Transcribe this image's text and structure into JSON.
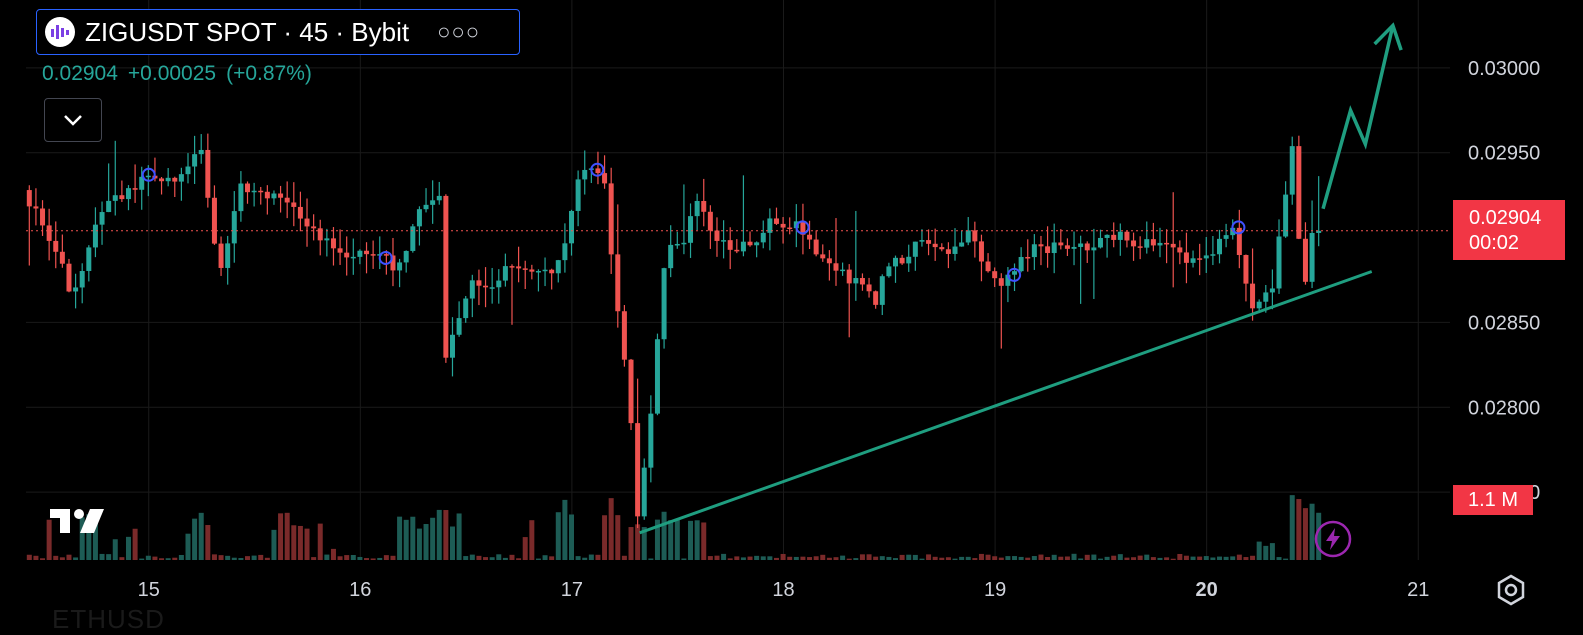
{
  "header": {
    "title": "ZIGUSDT SPOT · 45 · Bybit",
    "more_label": "○○○",
    "last_price": "0.02904",
    "change": "+0.00025",
    "change_pct": "(+0.87%)"
  },
  "price_tag": {
    "price": "0.02904",
    "countdown": "00:02"
  },
  "volume_tag": "1.1 M",
  "footer_text": "ETHUSD",
  "colors": {
    "up": "#26a69a",
    "down": "#ef5350",
    "trendline": "#1f9e80",
    "accent_tag": "#f23645",
    "border": "#2962ff"
  },
  "icons": [
    "tradingview-logo",
    "chevron-down-icon",
    "lightning-icon",
    "settings-gear-icon"
  ],
  "chart_data": {
    "type": "candlestick",
    "y_ticks": [
      "0.03000",
      "0.02950",
      "0.02850",
      "0.02800",
      "0.02750"
    ],
    "x_ticks": [
      {
        "label": "15",
        "bold": false
      },
      {
        "label": "16",
        "bold": false
      },
      {
        "label": "17",
        "bold": false
      },
      {
        "label": "18",
        "bold": false
      },
      {
        "label": "19",
        "bold": false
      },
      {
        "label": "20",
        "bold": true
      },
      {
        "label": "21",
        "bold": false
      }
    ],
    "ylim": [
      0.0271,
      0.0304
    ],
    "xlim": [
      14.42,
      21.15
    ],
    "last_price": 0.02904,
    "trendline": {
      "from": [
        17.32,
        0.02726
      ],
      "to": [
        20.78,
        0.0288
      ]
    },
    "projection": [
      [
        20.55,
        0.02917
      ],
      [
        20.68,
        0.02975
      ],
      [
        20.75,
        0.02955
      ],
      [
        20.88,
        0.03025
      ]
    ],
    "marker_points": [
      [
        15.0,
        0.02937
      ],
      [
        16.12,
        0.02888
      ],
      [
        17.12,
        0.0294
      ],
      [
        18.09,
        0.02906
      ],
      [
        19.09,
        0.02878
      ],
      [
        20.15,
        0.02906
      ]
    ],
    "anchors": [
      [
        14.42,
        0.02928
      ],
      [
        14.52,
        0.0291
      ],
      [
        14.65,
        0.02868
      ],
      [
        14.8,
        0.02915
      ],
      [
        15.0,
        0.02937
      ],
      [
        15.15,
        0.02935
      ],
      [
        15.25,
        0.02955
      ],
      [
        15.28,
        0.0294
      ],
      [
        15.35,
        0.0288
      ],
      [
        15.45,
        0.02928
      ],
      [
        15.6,
        0.02925
      ],
      [
        15.75,
        0.0291
      ],
      [
        15.9,
        0.0289
      ],
      [
        16.12,
        0.02888
      ],
      [
        16.2,
        0.02882
      ],
      [
        16.3,
        0.0292
      ],
      [
        16.4,
        0.02926
      ],
      [
        16.42,
        0.0283
      ],
      [
        16.55,
        0.0288
      ],
      [
        16.6,
        0.0287
      ],
      [
        16.7,
        0.0288
      ],
      [
        16.95,
        0.02883
      ],
      [
        17.0,
        0.02905
      ],
      [
        17.05,
        0.02935
      ],
      [
        17.12,
        0.0294
      ],
      [
        17.18,
        0.0293
      ],
      [
        17.2,
        0.0289
      ],
      [
        17.28,
        0.02815
      ],
      [
        17.33,
        0.0273
      ],
      [
        17.4,
        0.0281
      ],
      [
        17.46,
        0.0289
      ],
      [
        17.55,
        0.02898
      ],
      [
        17.6,
        0.02922
      ],
      [
        17.7,
        0.02895
      ],
      [
        17.85,
        0.02895
      ],
      [
        17.95,
        0.0291
      ],
      [
        18.1,
        0.02906
      ],
      [
        18.2,
        0.02885
      ],
      [
        18.4,
        0.0287
      ],
      [
        18.45,
        0.02862
      ],
      [
        18.5,
        0.0288
      ],
      [
        18.65,
        0.02895
      ],
      [
        18.8,
        0.02893
      ],
      [
        18.9,
        0.02905
      ],
      [
        19.0,
        0.02872
      ],
      [
        19.09,
        0.02878
      ],
      [
        19.2,
        0.02893
      ],
      [
        19.4,
        0.02895
      ],
      [
        19.6,
        0.029
      ],
      [
        19.8,
        0.02895
      ],
      [
        20.0,
        0.02885
      ],
      [
        20.15,
        0.02906
      ],
      [
        20.22,
        0.0286
      ],
      [
        20.32,
        0.02868
      ],
      [
        20.38,
        0.02915
      ],
      [
        20.42,
        0.02955
      ],
      [
        20.47,
        0.02865
      ],
      [
        20.52,
        0.02908
      ],
      [
        20.55,
        0.02904
      ]
    ],
    "volume_spikes": [
      {
        "x": 14.72,
        "v": 0.45
      },
      {
        "x": 14.92,
        "v": 0.3
      },
      {
        "x": 15.26,
        "v": 0.42
      },
      {
        "x": 15.63,
        "v": 0.4
      },
      {
        "x": 15.72,
        "v": 0.33
      },
      {
        "x": 16.22,
        "v": 0.35
      },
      {
        "x": 16.3,
        "v": 0.33
      },
      {
        "x": 16.36,
        "v": 0.5
      },
      {
        "x": 16.45,
        "v": 0.42
      },
      {
        "x": 16.98,
        "v": 0.5
      },
      {
        "x": 17.18,
        "v": 0.55
      },
      {
        "x": 17.3,
        "v": 0.35
      },
      {
        "x": 17.43,
        "v": 0.45
      },
      {
        "x": 17.58,
        "v": 0.32
      },
      {
        "x": 20.28,
        "v": 0.18
      },
      {
        "x": 20.45,
        "v": 0.62
      },
      {
        "x": 20.53,
        "v": 0.48
      }
    ]
  }
}
